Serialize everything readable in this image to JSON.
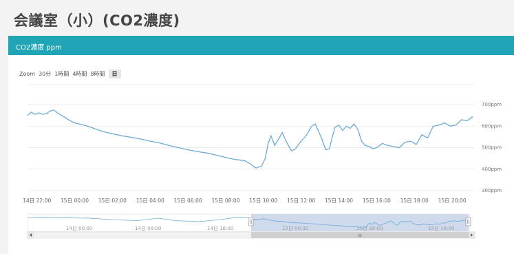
{
  "page": {
    "title": "会議室（小）(CO2濃度)"
  },
  "panel": {
    "title": "CO2濃度 ppm"
  },
  "zoom": {
    "label": "Zoom",
    "options": [
      "30分",
      "1時間",
      "4時間",
      "8時間",
      "日"
    ],
    "selected": "日"
  },
  "colors": {
    "header": "#1fa5b5",
    "line": "#6aaad6",
    "navigator_mask": "#c7d3ea"
  },
  "chart_data": {
    "type": "line",
    "title": "",
    "xlabel": "",
    "ylabel": "",
    "x_ticks": [
      "14日 22:00",
      "15日 00:00",
      "15日 02:00",
      "15日 04:00",
      "15日 06:00",
      "15日 08:00",
      "15日 10:00",
      "15日 12:00",
      "15日 14:00",
      "15日 16:00",
      "15日 18:00",
      "15日 20:00"
    ],
    "y_ticks": [
      "300ppm",
      "400ppm",
      "500ppm",
      "600ppm",
      "700ppm"
    ],
    "ylim": [
      300,
      700
    ],
    "xlim_hours": [
      -2.5,
      21.2
    ],
    "grid": true,
    "series": [
      {
        "name": "",
        "x_hours": [
          -2.5,
          -2.3,
          -2.1,
          -1.9,
          -1.7,
          -1.5,
          -1.3,
          -1.1,
          -0.9,
          -0.7,
          -0.5,
          -0.3,
          0.0,
          0.5,
          1.0,
          1.5,
          2.0,
          2.5,
          3.0,
          3.5,
          4.0,
          4.5,
          5.0,
          5.5,
          6.0,
          6.5,
          7.0,
          7.5,
          8.0,
          8.5,
          9.0,
          9.3,
          9.6,
          9.9,
          10.1,
          10.25,
          10.4,
          10.6,
          10.8,
          11.0,
          11.15,
          11.35,
          11.5,
          11.7,
          11.9,
          12.1,
          12.3,
          12.55,
          12.75,
          12.9,
          13.1,
          13.3,
          13.5,
          13.65,
          13.8,
          14.0,
          14.2,
          14.4,
          14.6,
          14.8,
          15.0,
          15.2,
          15.4,
          15.6,
          15.8,
          16.0,
          16.3,
          16.6,
          16.9,
          17.2,
          17.5,
          17.8,
          18.1,
          18.4,
          18.7,
          19.0,
          19.3,
          19.6,
          19.9,
          20.2,
          20.5,
          20.8,
          21.1
        ],
        "values": [
          650,
          665,
          655,
          662,
          655,
          658,
          670,
          675,
          660,
          650,
          640,
          628,
          615,
          605,
          590,
          575,
          565,
          555,
          548,
          540,
          530,
          522,
          510,
          500,
          490,
          482,
          475,
          465,
          455,
          445,
          440,
          425,
          405,
          415,
          450,
          520,
          555,
          510,
          540,
          570,
          540,
          505,
          485,
          495,
          520,
          540,
          560,
          600,
          610,
          580,
          540,
          490,
          495,
          550,
          595,
          605,
          580,
          600,
          590,
          610,
          585,
          530,
          510,
          505,
          495,
          500,
          520,
          510,
          505,
          500,
          525,
          530,
          515,
          560,
          545,
          600,
          605,
          615,
          600,
          605,
          630,
          625,
          645
        ]
      }
    ],
    "navigator": {
      "x_labels": [
        "14日 00:00",
        "14日 08:00",
        "14日 16:00",
        "15日 00:00",
        "15日 08:00",
        "15日 16:00"
      ],
      "scrollbar_label": "III"
    }
  }
}
